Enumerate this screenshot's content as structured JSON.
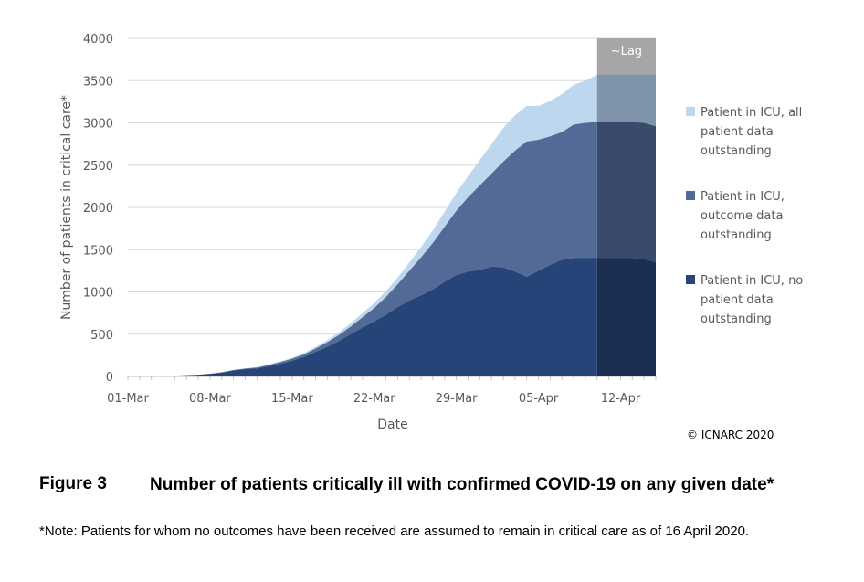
{
  "chart_data": {
    "type": "area",
    "stacked": true,
    "xlabel": "Date",
    "ylabel": "Number of patients in critical care*",
    "ylim": [
      0,
      4000
    ],
    "yticks": [
      0,
      500,
      1000,
      1500,
      2000,
      2500,
      3000,
      3500,
      4000
    ],
    "xtick_labels": [
      {
        "label": "01-Mar",
        "day": 0
      },
      {
        "label": "08-Mar",
        "day": 7
      },
      {
        "label": "15-Mar",
        "day": 14
      },
      {
        "label": "22-Mar",
        "day": 21
      },
      {
        "label": "29-Mar",
        "day": 28
      },
      {
        "label": "05-Apr",
        "day": 35
      },
      {
        "label": "12-Apr",
        "day": 42
      }
    ],
    "x_range_days": [
      0,
      45
    ],
    "lag": {
      "label": "~Lag",
      "from_day": 40,
      "to_day": 45
    },
    "series": [
      {
        "name": "Patient in ICU, no patient data outstanding",
        "color": "#264478",
        "lag_color": "#1C2E52",
        "values": [
          0,
          3,
          5,
          8,
          10,
          15,
          20,
          30,
          45,
          70,
          85,
          95,
          120,
          150,
          185,
          230,
          290,
          350,
          420,
          500,
          580,
          650,
          730,
          820,
          900,
          960,
          1030,
          1120,
          1200,
          1240,
          1260,
          1300,
          1290,
          1240,
          1180,
          1250,
          1320,
          1380,
          1400,
          1400,
          1400,
          1400,
          1400,
          1400,
          1390,
          1350
        ]
      },
      {
        "name": "Patient in ICU, outcome data outstanding",
        "color": "#536A96",
        "lag_color": "#3A4A6B",
        "values": [
          0,
          0,
          0,
          0,
          0,
          0,
          0,
          2,
          4,
          5,
          8,
          10,
          15,
          20,
          25,
          30,
          40,
          55,
          70,
          90,
          120,
          160,
          210,
          270,
          350,
          450,
          550,
          650,
          760,
          880,
          1000,
          1100,
          1250,
          1430,
          1600,
          1550,
          1520,
          1510,
          1580,
          1600,
          1610,
          1610,
          1610,
          1610,
          1610,
          1610
        ]
      },
      {
        "name": "Patient in ICU, all patient data outstanding",
        "color": "#BDD7EE",
        "lag_color": "#7F94AB",
        "values": [
          0,
          0,
          0,
          0,
          0,
          0,
          0,
          0,
          1,
          2,
          3,
          4,
          5,
          8,
          10,
          15,
          20,
          25,
          30,
          40,
          50,
          60,
          70,
          80,
          100,
          120,
          150,
          180,
          210,
          250,
          300,
          350,
          400,
          420,
          420,
          400,
          420,
          450,
          470,
          500,
          560,
          600,
          620,
          650,
          680,
          690
        ]
      }
    ],
    "legend_placement": "right",
    "legend": [
      {
        "lines": [
          "Patient in ICU, all",
          "patient data",
          "outstanding"
        ],
        "color": "#BDD7EE"
      },
      {
        "lines": [
          "Patient in ICU,",
          "outcome data",
          "outstanding"
        ],
        "color": "#536A96"
      },
      {
        "lines": [
          "Patient in ICU, no",
          "patient data",
          "outstanding"
        ],
        "color": "#264478"
      }
    ]
  },
  "copyright": "© ICNARC 2020",
  "caption": {
    "label": "Figure 3",
    "title": "Number of patients critically ill with confirmed COVID-19 on any given date*",
    "note": "*Note: Patients for whom no outcomes have been received are assumed to remain in critical care as of 16 April 2020."
  }
}
